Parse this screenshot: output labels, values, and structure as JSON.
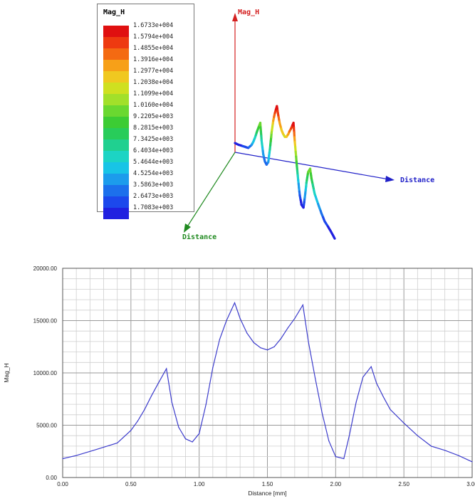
{
  "legend": {
    "title": "Mag_H",
    "entries": [
      {
        "label": "1.6733e+004",
        "color": "#e01010"
      },
      {
        "label": "1.5794e+004",
        "color": "#ee3a10"
      },
      {
        "label": "1.4855e+004",
        "color": "#f46a12"
      },
      {
        "label": "1.3916e+004",
        "color": "#f7a018"
      },
      {
        "label": "1.2977e+004",
        "color": "#f0c820"
      },
      {
        "label": "1.2038e+004",
        "color": "#cfe020"
      },
      {
        "label": "1.1099e+004",
        "color": "#a2e02a"
      },
      {
        "label": "1.0160e+004",
        "color": "#6ad830"
      },
      {
        "label": "9.2205e+003",
        "color": "#3ccc34"
      },
      {
        "label": "8.2815e+003",
        "color": "#28cc5a"
      },
      {
        "label": "7.3425e+003",
        "color": "#20d090"
      },
      {
        "label": "6.4034e+003",
        "color": "#1cd4c4"
      },
      {
        "label": "5.4644e+003",
        "color": "#18c4e6"
      },
      {
        "label": "4.5254e+003",
        "color": "#1c9cec"
      },
      {
        "label": "3.5863e+003",
        "color": "#1c70ec"
      },
      {
        "label": "2.6473e+003",
        "color": "#1c48ec"
      },
      {
        "label": "1.7083e+003",
        "color": "#2020e0"
      }
    ]
  },
  "plot3d": {
    "axis_z_label": "Mag_H",
    "axis_x_label": "Distance",
    "axis_y_label": "Distance",
    "z_axis_color": "#d42020",
    "x_axis_color": "#2020c8",
    "y_axis_color": "#208a20"
  },
  "chart_data": {
    "type": "line",
    "title": "",
    "xlabel": "Distance [mm]",
    "ylabel": "Mag_H",
    "xlim": [
      0.0,
      3.0
    ],
    "ylim": [
      0,
      20000
    ],
    "x_ticks": [
      0.0,
      0.5,
      1.0,
      1.5,
      2.0,
      2.5,
      3.0
    ],
    "x_tick_labels": [
      "0.00",
      "0.50",
      "1.00",
      "1.50",
      "2.00",
      "2.50",
      "3.00"
    ],
    "y_ticks": [
      0,
      5000,
      10000,
      15000,
      20000
    ],
    "y_tick_labels": [
      "0.00",
      "5000.00",
      "10000.00",
      "15000.00",
      "20000.00"
    ],
    "grid": true,
    "line_color": "#3c3ccc",
    "series": [
      {
        "x": [
          0.0,
          0.1,
          0.2,
          0.3,
          0.4,
          0.5,
          0.55,
          0.6,
          0.65,
          0.7,
          0.76,
          0.8,
          0.85,
          0.9,
          0.95,
          1.0,
          1.05,
          1.1,
          1.15,
          1.2,
          1.26,
          1.3,
          1.35,
          1.4,
          1.45,
          1.5,
          1.55,
          1.6,
          1.65,
          1.7,
          1.76,
          1.8,
          1.85,
          1.9,
          1.95,
          2.0,
          2.06,
          2.1,
          2.15,
          2.2,
          2.26,
          2.3,
          2.35,
          2.4,
          2.5,
          2.6,
          2.7,
          2.8,
          2.9,
          3.0
        ],
        "y": [
          1800,
          2100,
          2500,
          2900,
          3300,
          4500,
          5400,
          6500,
          7800,
          9000,
          10400,
          7200,
          4800,
          3700,
          3400,
          4200,
          7000,
          10500,
          13200,
          15000,
          16700,
          15200,
          13800,
          12900,
          12400,
          12200,
          12500,
          13300,
          14300,
          15200,
          16500,
          13000,
          9500,
          6200,
          3500,
          2000,
          1800,
          4000,
          7200,
          9600,
          10600,
          9000,
          7700,
          6500,
          5200,
          4000,
          3000,
          2600,
          2100,
          1500
        ]
      }
    ]
  }
}
